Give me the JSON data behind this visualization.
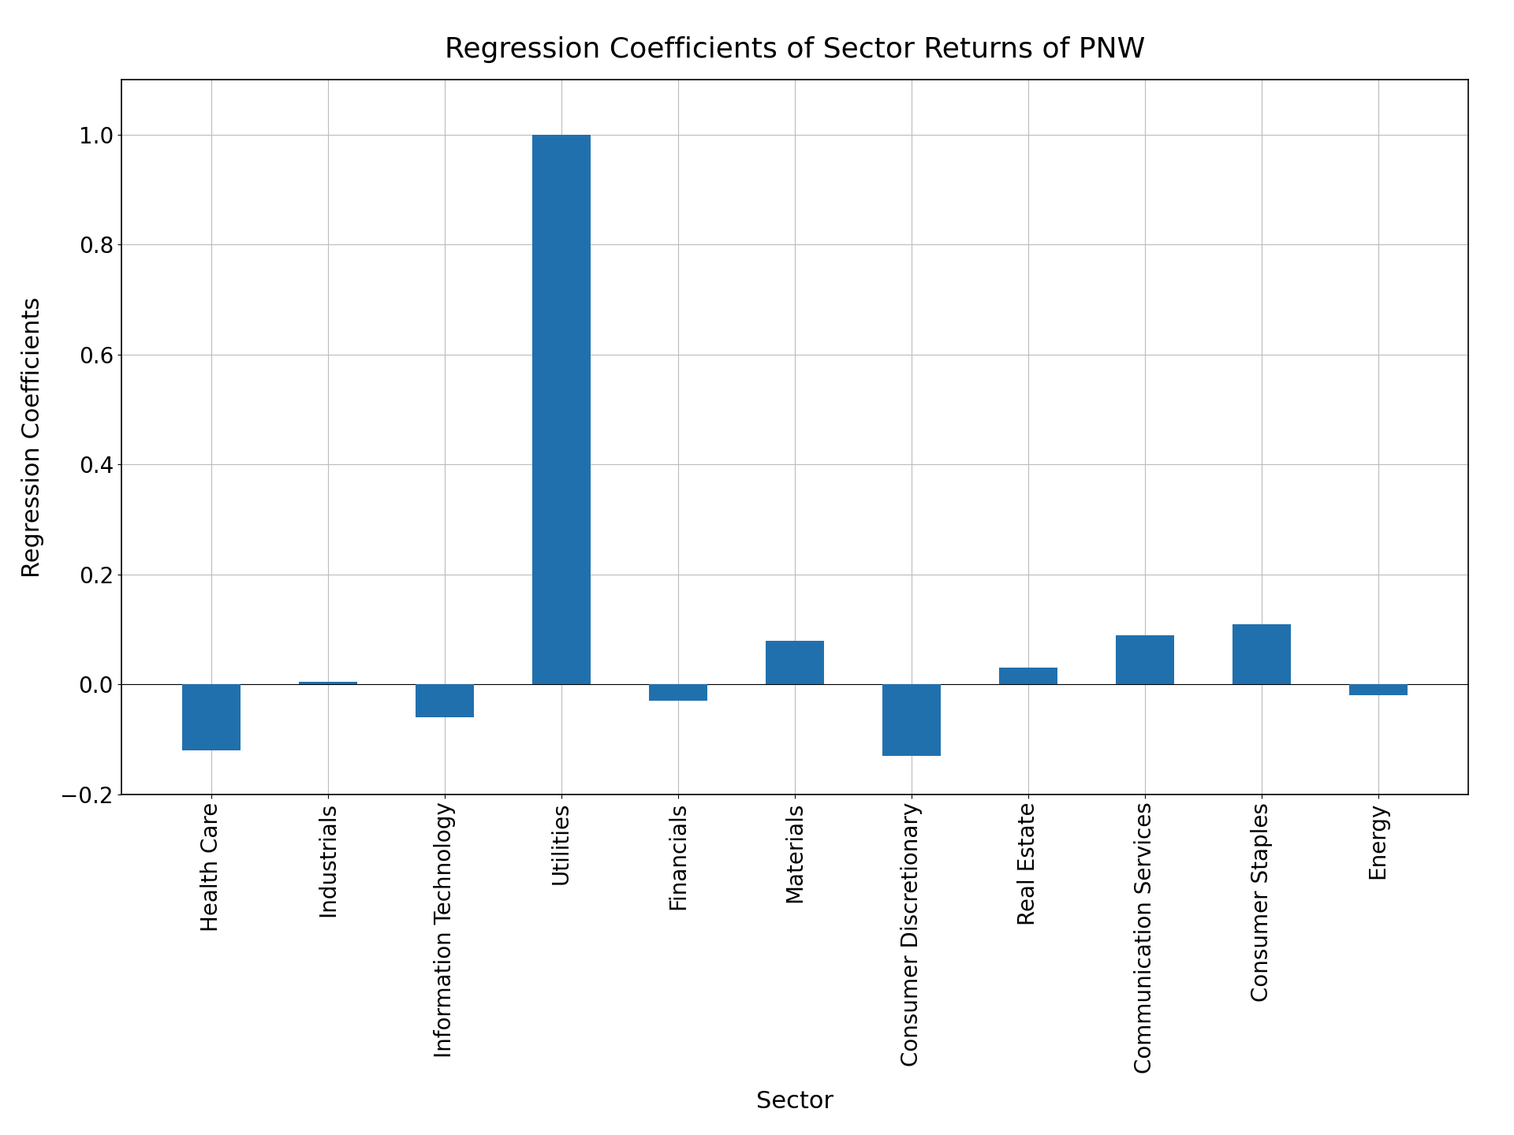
{
  "categories": [
    "Health Care",
    "Industrials",
    "Information Technology",
    "Utilities",
    "Financials",
    "Materials",
    "Consumer Discretionary",
    "Real Estate",
    "Communication Services",
    "Consumer Staples",
    "Energy"
  ],
  "values": [
    -0.12,
    0.005,
    -0.06,
    1.0,
    -0.03,
    0.08,
    -0.13,
    0.03,
    0.09,
    0.11,
    -0.02
  ],
  "bar_color": "#2170ae",
  "title": "Regression Coefficients of Sector Returns of PNW",
  "xlabel": "Sector",
  "ylabel": "Regression Coefficients",
  "ylim": [
    -0.2,
    1.1
  ],
  "title_fontsize": 26,
  "label_fontsize": 22,
  "tick_fontsize": 20,
  "background_color": "#ffffff",
  "grid_color": "#bbbbbb",
  "bar_width": 0.5
}
